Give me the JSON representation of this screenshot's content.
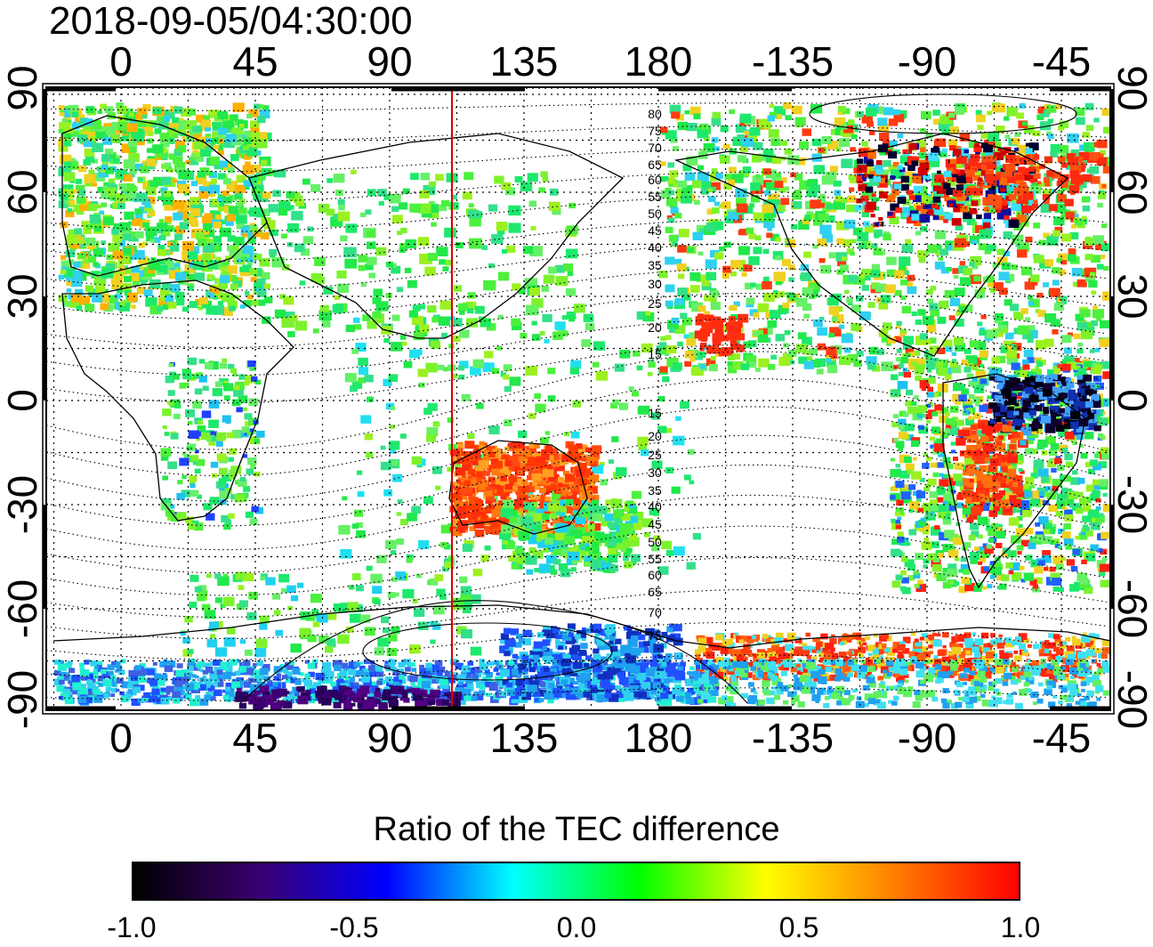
{
  "title": "2018-09-05/04:30:00",
  "map": {
    "lon_ticks_top": [
      "0",
      "45",
      "90",
      "135",
      "180",
      "-135",
      "-90",
      "-45"
    ],
    "lon_ticks_bottom": [
      "0",
      "45",
      "90",
      "135",
      "180",
      "-135",
      "-90",
      "-45"
    ],
    "lat_ticks_left": [
      "90",
      "60",
      "30",
      "0",
      "-30",
      "-60",
      "-90"
    ],
    "lat_ticks_right": [
      "90",
      "60",
      "30",
      "0",
      "-30",
      "-60",
      "-90"
    ],
    "contour_labels": [
      "80",
      "75",
      "70",
      "65",
      "60",
      "55",
      "50",
      "45",
      "40",
      "35",
      "30",
      "25",
      "20",
      "15",
      "15",
      "20",
      "25",
      "30",
      "35",
      "40",
      "45",
      "50",
      "55",
      "60",
      "65",
      "70",
      "75"
    ],
    "terminator_line_color": "#dd0000",
    "grid": "dotted"
  },
  "colorbar": {
    "title": "Ratio of the TEC difference",
    "labels": [
      "-1.0",
      "-0.5",
      "0.0",
      "0.5",
      "1.0"
    ],
    "colors": [
      "#000000",
      "#3a0070",
      "#0000ff",
      "#00ffff",
      "#00ff00",
      "#ffff00",
      "#ff8000",
      "#ff0000"
    ]
  }
}
